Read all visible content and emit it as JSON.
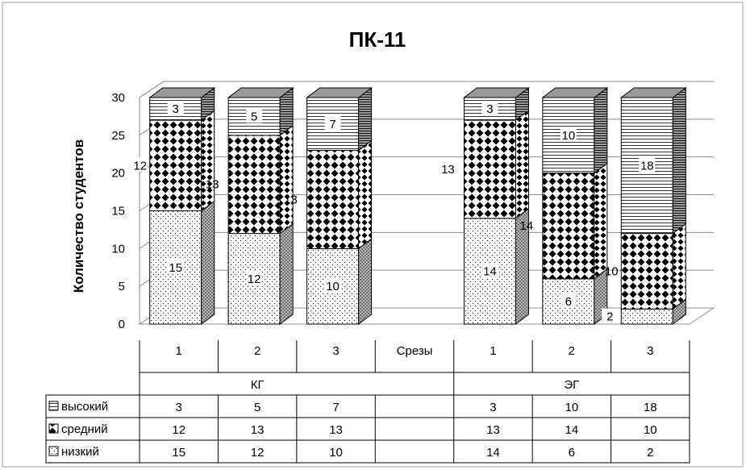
{
  "chart_data": {
    "type": "bar",
    "stacked": true,
    "three_d": true,
    "title": "ПК-11",
    "ylabel": "Количество студентов",
    "ylim": [
      0,
      30
    ],
    "yticks": [
      0,
      5,
      10,
      15,
      20,
      25,
      30
    ],
    "grid": true,
    "categories": [
      "1",
      "2",
      "3",
      "Срезы",
      "1",
      "2",
      "3"
    ],
    "groups": [
      {
        "label": "КГ",
        "span": [
          0,
          3
        ]
      },
      {
        "label": "ЭГ",
        "span": [
          4,
          7
        ]
      }
    ],
    "series": [
      {
        "name": "низкий",
        "pattern": "dots",
        "values": [
          15,
          12,
          10,
          null,
          14,
          6,
          2
        ],
        "table_values": [
          "15",
          "12",
          "10",
          "",
          "14",
          "6",
          "2"
        ]
      },
      {
        "name": "средний",
        "pattern": "diamonds",
        "values": [
          12,
          13,
          13,
          null,
          13,
          14,
          10
        ],
        "table_values": [
          "12",
          "13",
          "13",
          "",
          "13",
          "14",
          "10"
        ]
      },
      {
        "name": "высокий",
        "pattern": "horizontal-lines",
        "values": [
          3,
          5,
          7,
          null,
          3,
          10,
          18
        ],
        "table_values": [
          "3",
          "5",
          "7",
          "",
          "3",
          "10",
          "18"
        ]
      }
    ],
    "table_row_order": [
      "высокий",
      "средний",
      "низкий"
    ],
    "legend": "data-table"
  }
}
